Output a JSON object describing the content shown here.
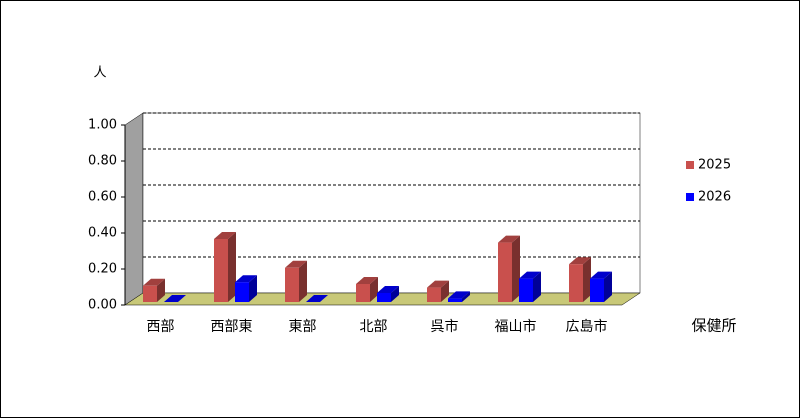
{
  "chart_data": {
    "type": "bar3d",
    "y_label": "人",
    "x_label": "保健所",
    "categories": [
      "西部",
      "西部東",
      "東部",
      "北部",
      "呉市",
      "福山市",
      "広島市"
    ],
    "series": [
      {
        "name": "2025",
        "color": "#c9504d",
        "values": [
          0.09,
          0.35,
          0.19,
          0.1,
          0.08,
          0.33,
          0.21
        ]
      },
      {
        "name": "2026",
        "color": "#0000ff",
        "values": [
          0.0,
          0.11,
          0.0,
          0.05,
          0.02,
          0.13,
          0.13
        ]
      }
    ],
    "ylim": [
      0,
      1
    ],
    "yticks": [
      {
        "value": 0,
        "label": "0.00"
      },
      {
        "value": 0.2,
        "label": "0.20"
      },
      {
        "value": 0.4,
        "label": "0.40"
      },
      {
        "value": 0.6,
        "label": "0.60"
      },
      {
        "value": 0.8,
        "label": "0.80"
      },
      {
        "value": 1,
        "label": "1.00"
      }
    ],
    "grid": true,
    "legend": "right"
  }
}
